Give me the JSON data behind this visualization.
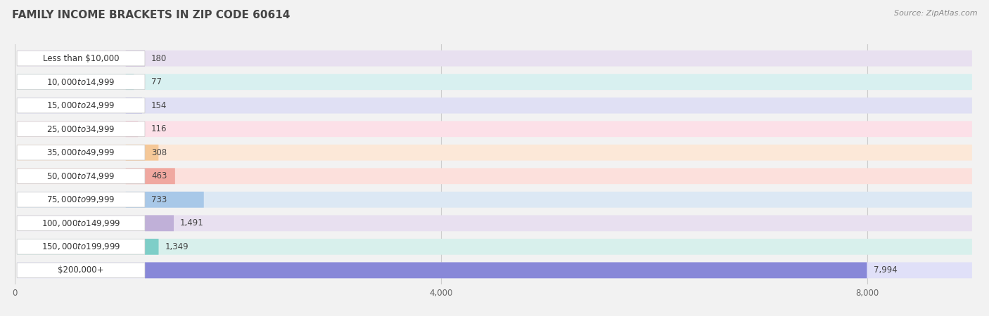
{
  "title": "FAMILY INCOME BRACKETS IN ZIP CODE 60614",
  "source": "Source: ZipAtlas.com",
  "categories": [
    "Less than $10,000",
    "$10,000 to $14,999",
    "$15,000 to $24,999",
    "$25,000 to $34,999",
    "$35,000 to $49,999",
    "$50,000 to $74,999",
    "$75,000 to $99,999",
    "$100,000 to $149,999",
    "$150,000 to $199,999",
    "$200,000+"
  ],
  "values": [
    180,
    77,
    154,
    116,
    308,
    463,
    733,
    1491,
    1349,
    7994
  ],
  "bar_colors": [
    "#c4b0d4",
    "#7ecece",
    "#b8b8e8",
    "#f0a0b8",
    "#f5c898",
    "#f0a8a0",
    "#a8c8e8",
    "#c0b0d8",
    "#7ecec8",
    "#8888d8"
  ],
  "row_bg_colors": [
    "#e8e0f0",
    "#d8f0f0",
    "#e0e0f4",
    "#fce0e8",
    "#fce8d8",
    "#fce0dc",
    "#dce8f4",
    "#e8e0f0",
    "#d8f0ec",
    "#e0e0f8"
  ],
  "label_bg_color": "#ffffff",
  "background_color": "#f2f2f2",
  "xlim": [
    0,
    9000
  ],
  "xticks": [
    0,
    4000,
    8000
  ],
  "xticklabels": [
    "0",
    "4,000",
    "8,000"
  ],
  "title_fontsize": 11,
  "label_fontsize": 8.5,
  "value_fontsize": 8.5,
  "source_fontsize": 8
}
